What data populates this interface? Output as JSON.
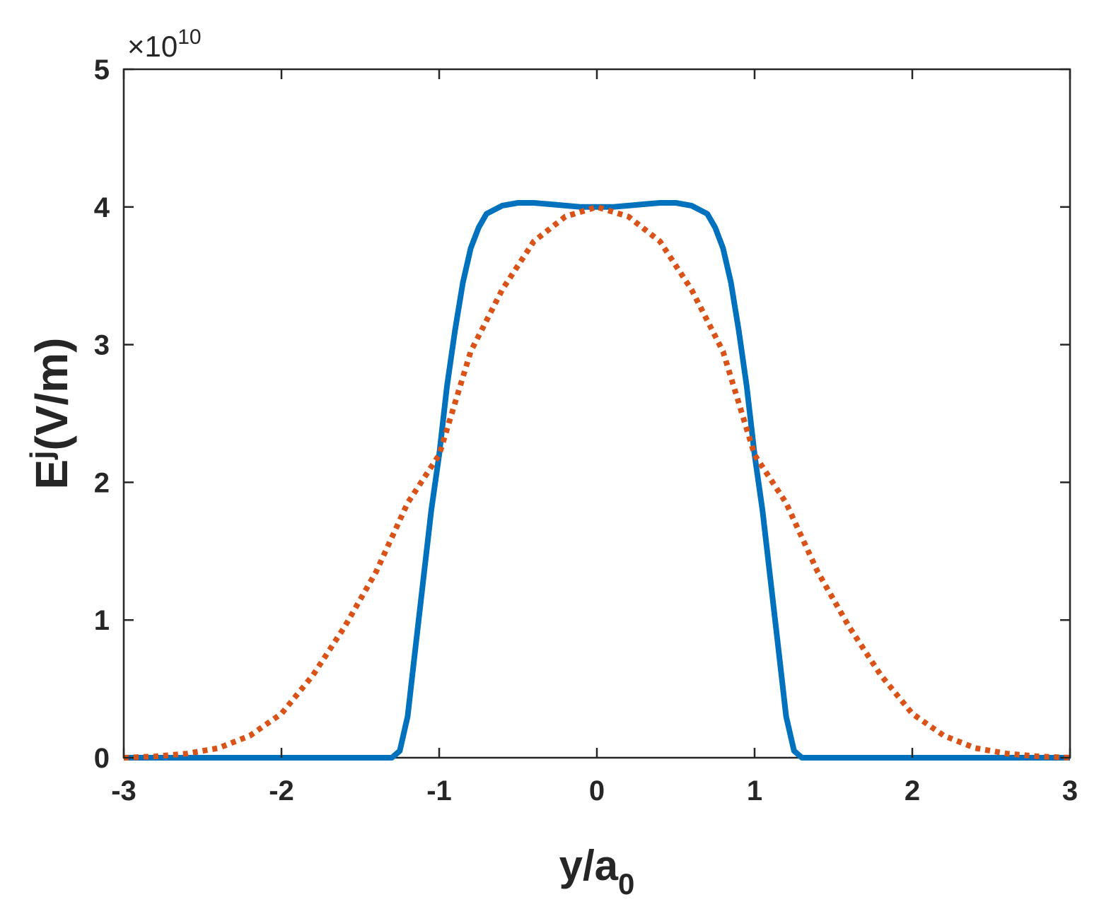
{
  "chart_data": {
    "type": "line",
    "title": "",
    "xlabel": {
      "main": "y/a",
      "sub": "0"
    },
    "ylabel": {
      "main": "E",
      "sup": "j",
      "rest": "(V/m)"
    },
    "y_exponent": {
      "base": "×10",
      "power": "10"
    },
    "xlim": [
      -3,
      3
    ],
    "ylim": [
      0,
      5
    ],
    "x_ticks": [
      -3,
      -2,
      -1,
      0,
      1,
      2,
      3
    ],
    "y_ticks": [
      0,
      1,
      2,
      3,
      4,
      5
    ],
    "grid": false,
    "series": [
      {
        "style": "solid",
        "color": "#0072BD",
        "points": [
          [
            -3.0,
            0.0
          ],
          [
            -2.0,
            0.0
          ],
          [
            -1.3,
            0.0
          ],
          [
            -1.25,
            0.05
          ],
          [
            -1.2,
            0.3
          ],
          [
            -1.15,
            0.8
          ],
          [
            -1.1,
            1.3
          ],
          [
            -1.05,
            1.8
          ],
          [
            -1.0,
            2.2
          ],
          [
            -0.95,
            2.7
          ],
          [
            -0.9,
            3.1
          ],
          [
            -0.85,
            3.45
          ],
          [
            -0.8,
            3.7
          ],
          [
            -0.75,
            3.85
          ],
          [
            -0.7,
            3.95
          ],
          [
            -0.6,
            4.01
          ],
          [
            -0.5,
            4.03
          ],
          [
            -0.4,
            4.03
          ],
          [
            -0.3,
            4.02
          ],
          [
            -0.2,
            4.01
          ],
          [
            -0.1,
            4.0
          ],
          [
            0.0,
            4.0
          ],
          [
            0.1,
            4.0
          ],
          [
            0.2,
            4.01
          ],
          [
            0.3,
            4.02
          ],
          [
            0.4,
            4.03
          ],
          [
            0.5,
            4.03
          ],
          [
            0.6,
            4.01
          ],
          [
            0.7,
            3.95
          ],
          [
            0.75,
            3.85
          ],
          [
            0.8,
            3.7
          ],
          [
            0.85,
            3.45
          ],
          [
            0.9,
            3.1
          ],
          [
            0.95,
            2.7
          ],
          [
            1.0,
            2.2
          ],
          [
            1.05,
            1.8
          ],
          [
            1.1,
            1.3
          ],
          [
            1.15,
            0.8
          ],
          [
            1.2,
            0.3
          ],
          [
            1.25,
            0.05
          ],
          [
            1.3,
            0.0
          ],
          [
            2.0,
            0.0
          ],
          [
            3.0,
            0.0
          ]
        ]
      },
      {
        "style": "dotted",
        "color": "#D95319",
        "points": [
          [
            -3.0,
            0.0
          ],
          [
            -2.8,
            0.01
          ],
          [
            -2.6,
            0.03
          ],
          [
            -2.4,
            0.07
          ],
          [
            -2.2,
            0.16
          ],
          [
            -2.0,
            0.32
          ],
          [
            -1.8,
            0.6
          ],
          [
            -1.6,
            0.95
          ],
          [
            -1.4,
            1.35
          ],
          [
            -1.2,
            1.85
          ],
          [
            -1.0,
            2.2
          ],
          [
            -0.8,
            2.95
          ],
          [
            -0.6,
            3.4
          ],
          [
            -0.4,
            3.75
          ],
          [
            -0.2,
            3.93
          ],
          [
            0.0,
            4.0
          ],
          [
            0.2,
            3.93
          ],
          [
            0.4,
            3.75
          ],
          [
            0.6,
            3.4
          ],
          [
            0.8,
            2.95
          ],
          [
            1.0,
            2.2
          ],
          [
            1.2,
            1.85
          ],
          [
            1.4,
            1.35
          ],
          [
            1.6,
            0.95
          ],
          [
            1.8,
            0.6
          ],
          [
            2.0,
            0.32
          ],
          [
            2.2,
            0.16
          ],
          [
            2.4,
            0.07
          ],
          [
            2.6,
            0.03
          ],
          [
            2.8,
            0.01
          ],
          [
            3.0,
            0.0
          ]
        ]
      }
    ]
  }
}
